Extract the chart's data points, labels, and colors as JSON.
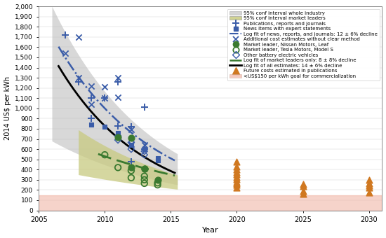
{
  "xlabel": "Year",
  "ylabel": "2014 US$ per kWh",
  "xlim": [
    2005,
    2031
  ],
  "ylim": [
    0,
    2000
  ],
  "yticks": [
    0,
    100,
    200,
    300,
    400,
    500,
    600,
    700,
    800,
    900,
    1000,
    1100,
    1200,
    1300,
    1400,
    1500,
    1600,
    1700,
    1800,
    1900,
    2000
  ],
  "ytick_labels": [
    "0",
    "100",
    "200",
    "300",
    "400",
    "500",
    "600",
    "700",
    "800",
    "900",
    "1,000",
    "1,100",
    "1,200",
    "1,300",
    "1,400",
    "1,500",
    "1,600",
    "1,700",
    "1,800",
    "1,900",
    "2,000"
  ],
  "xticks": [
    2005,
    2010,
    2015,
    2020,
    2025,
    2030
  ],
  "publications_x": [
    2007,
    2008,
    2009,
    2009,
    2010,
    2011,
    2011,
    2012,
    2012,
    2013,
    2013
  ],
  "publications_y": [
    1720,
    1260,
    1100,
    900,
    1100,
    1260,
    830,
    820,
    480,
    1010,
    600
  ],
  "news_x": [
    2009,
    2010,
    2011,
    2012,
    2013,
    2014,
    2014
  ],
  "news_y": [
    840,
    820,
    760,
    640,
    600,
    510,
    490
  ],
  "additional_x": [
    2007,
    2008,
    2008,
    2009,
    2009,
    2010,
    2010,
    2011,
    2011,
    2012,
    2012,
    2013
  ],
  "additional_y": [
    1540,
    1700,
    1300,
    1220,
    1040,
    1210,
    1100,
    1300,
    1110,
    790,
    650,
    640
  ],
  "nissan_x": [
    2011,
    2012,
    2012,
    2013,
    2013,
    2014
  ],
  "nissan_y": [
    720,
    710,
    420,
    410,
    410,
    300
  ],
  "tesla_x": [
    2010,
    2011,
    2012,
    2012,
    2013,
    2013,
    2013,
    2014,
    2014
  ],
  "tesla_y": [
    545,
    420,
    390,
    320,
    335,
    300,
    265,
    270,
    250
  ],
  "other_bev_x": [
    2011,
    2011,
    2012,
    2012,
    2013,
    2013
  ],
  "other_bev_y": [
    690,
    730,
    665,
    600,
    580,
    545
  ],
  "future_x": [
    2020,
    2020,
    2020,
    2020,
    2020,
    2020,
    2020,
    2020,
    2020,
    2020,
    2020,
    2025,
    2025,
    2025,
    2025,
    2030,
    2030,
    2030,
    2030,
    2030
  ],
  "future_y": [
    475,
    430,
    400,
    375,
    355,
    325,
    305,
    280,
    265,
    250,
    225,
    255,
    235,
    190,
    165,
    300,
    265,
    245,
    220,
    175
  ],
  "color_blue": "#3a5ca8",
  "color_green": "#3a7a30",
  "color_orange": "#d07820",
  "color_gray_fill": "#b8b8b8",
  "color_olive_fill": "#c8ca80",
  "color_salmon": "#f0b0a0",
  "bg_color": "#ffffff",
  "gray_band_x_start": 2006.0,
  "gray_band_x_end": 2015.5,
  "olive_band_x_start": 2008.0,
  "olive_band_x_end": 2015.5,
  "gray_upper_A": 2000,
  "gray_upper_rate": 0.135,
  "gray_lower_A": 680,
  "gray_lower_rate": 0.105,
  "olive_upper_A": 790,
  "olive_upper_rate": 0.11,
  "olive_lower_A": 350,
  "olive_lower_rate": 0.07,
  "black_line_A": 1310,
  "black_line_rate": 0.153,
  "black_line_x0": 2007,
  "blue_line_A": 1500,
  "blue_line_rate": 0.135,
  "blue_line_x0": 2007,
  "green_line_A": 530,
  "green_line_rate": 0.083,
  "green_line_x0": 2010
}
